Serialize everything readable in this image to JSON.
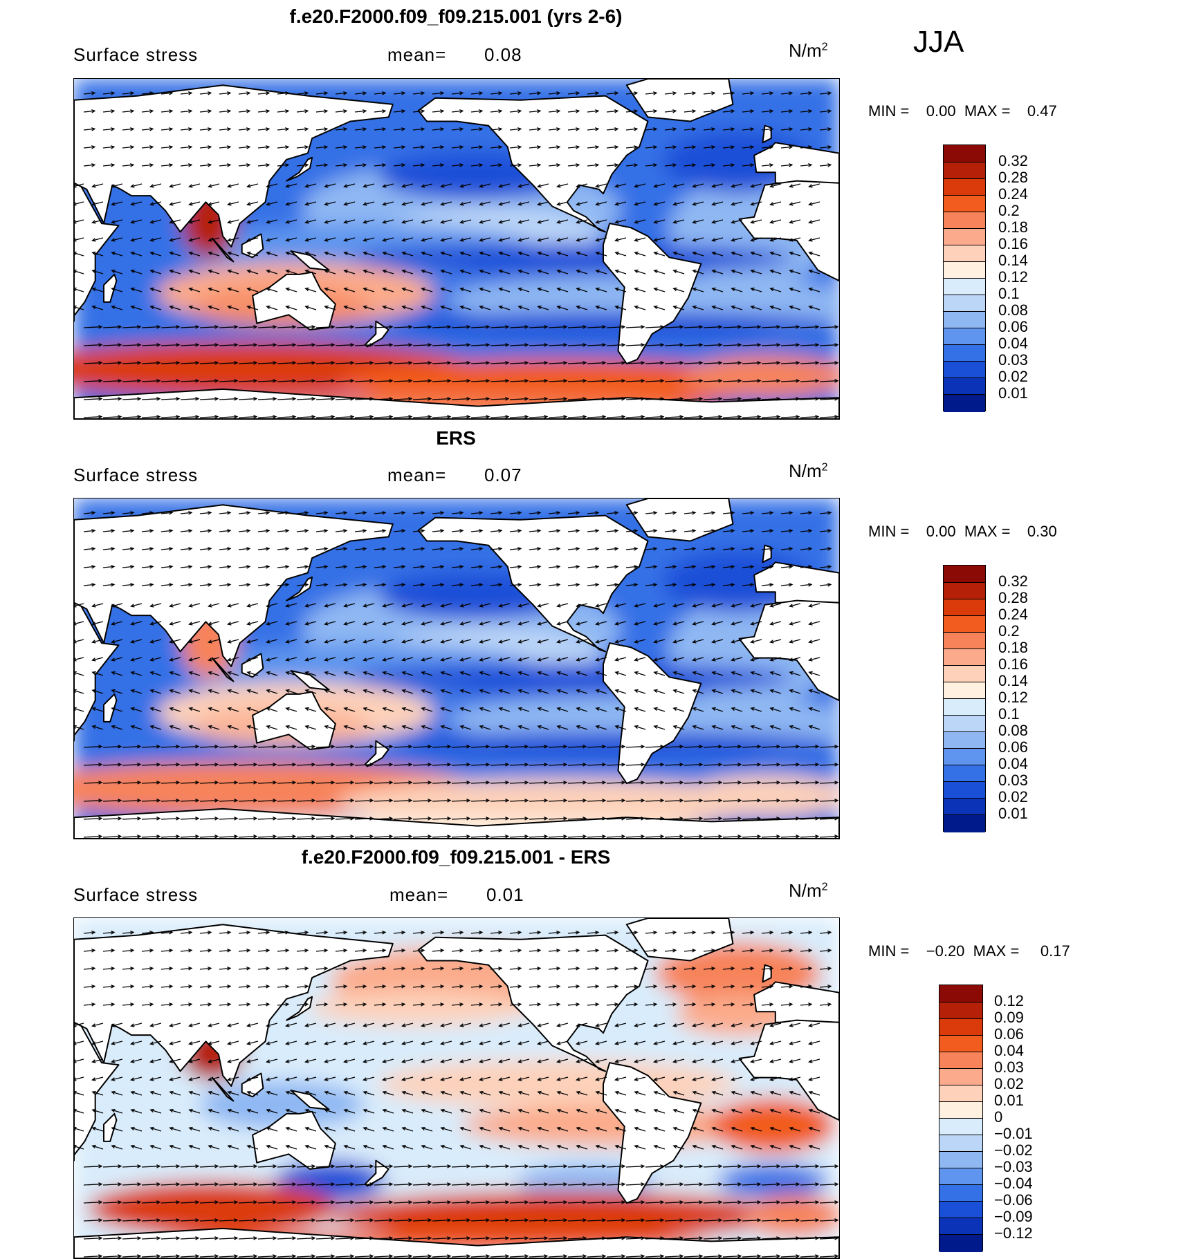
{
  "season": "JJA",
  "panels": [
    {
      "title": "f.e20.F2000.f09_f09.215.001 (yrs 2-6)",
      "variable": "Surface stress",
      "mean_label": "mean=",
      "mean_value": "0.08",
      "units": "N/m",
      "units_sup": "2",
      "min_label": "MIN =",
      "min_value": "0.00",
      "max_label": "MAX =",
      "max_value": "0.47",
      "colorbar": {
        "labels": [
          "0.32",
          "0.28",
          "0.24",
          "0.2",
          "0.18",
          "0.16",
          "0.14",
          "0.12",
          "0.1",
          "0.08",
          "0.06",
          "0.04",
          "0.03",
          "0.02",
          "0.01"
        ],
        "colors": [
          "#8b0a05",
          "#b52108",
          "#db3a0a",
          "#f25c1e",
          "#f7835a",
          "#fbab8b",
          "#fdd1ba",
          "#fff0e0",
          "#d9ecfb",
          "#bcd6f7",
          "#8fb8f3",
          "#5f95ee",
          "#3571e6",
          "#1a4fd8",
          "#0a33b8",
          "#001a8c"
        ]
      }
    },
    {
      "title": "ERS",
      "variable": "Surface stress",
      "mean_label": "mean=",
      "mean_value": "0.07",
      "units": "N/m",
      "units_sup": "2",
      "min_label": "MIN =",
      "min_value": "0.00",
      "max_label": "MAX =",
      "max_value": "0.30",
      "colorbar": {
        "labels": [
          "0.32",
          "0.28",
          "0.24",
          "0.2",
          "0.18",
          "0.16",
          "0.14",
          "0.12",
          "0.1",
          "0.08",
          "0.06",
          "0.04",
          "0.03",
          "0.02",
          "0.01"
        ],
        "colors": [
          "#8b0a05",
          "#b52108",
          "#db3a0a",
          "#f25c1e",
          "#f7835a",
          "#fbab8b",
          "#fdd1ba",
          "#fff0e0",
          "#d9ecfb",
          "#bcd6f7",
          "#8fb8f3",
          "#5f95ee",
          "#3571e6",
          "#1a4fd8",
          "#0a33b8",
          "#001a8c"
        ]
      }
    },
    {
      "title": "f.e20.F2000.f09_f09.215.001 - ERS",
      "variable": "Surface stress",
      "mean_label": "mean=",
      "mean_value": "0.01",
      "units": "N/m",
      "units_sup": "2",
      "min_label": "MIN =",
      "min_value": "−0.20",
      "max_label": "MAX =",
      "max_value": "0.17",
      "colorbar": {
        "labels": [
          "0.12",
          "0.09",
          "0.06",
          "0.04",
          "0.03",
          "0.02",
          "0.01",
          "0",
          "−0.01",
          "−0.02",
          "−0.03",
          "−0.04",
          "−0.06",
          "−0.09",
          "−0.12"
        ],
        "colors": [
          "#8b0a05",
          "#b52108",
          "#db3a0a",
          "#f25c1e",
          "#f7835a",
          "#fbab8b",
          "#fdd1ba",
          "#fff0e0",
          "#d9ecfb",
          "#bcd6f7",
          "#8fb8f3",
          "#5f95ee",
          "#3571e6",
          "#1a4fd8",
          "#0a33b8",
          "#001a8c"
        ]
      }
    }
  ]
}
